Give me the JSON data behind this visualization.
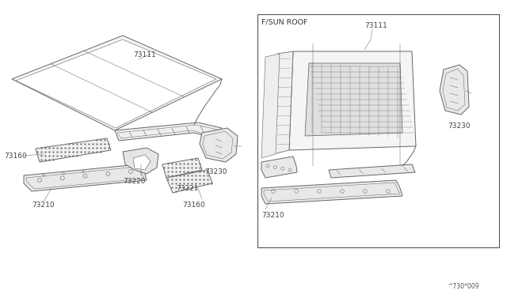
{
  "bg_color": "#ffffff",
  "watermark": "^730*009",
  "sunroof_label": "F/SUN ROOF",
  "line_color": "#666666",
  "line_width": 0.7,
  "box_border_color": "#555555",
  "label_color": "#444444"
}
